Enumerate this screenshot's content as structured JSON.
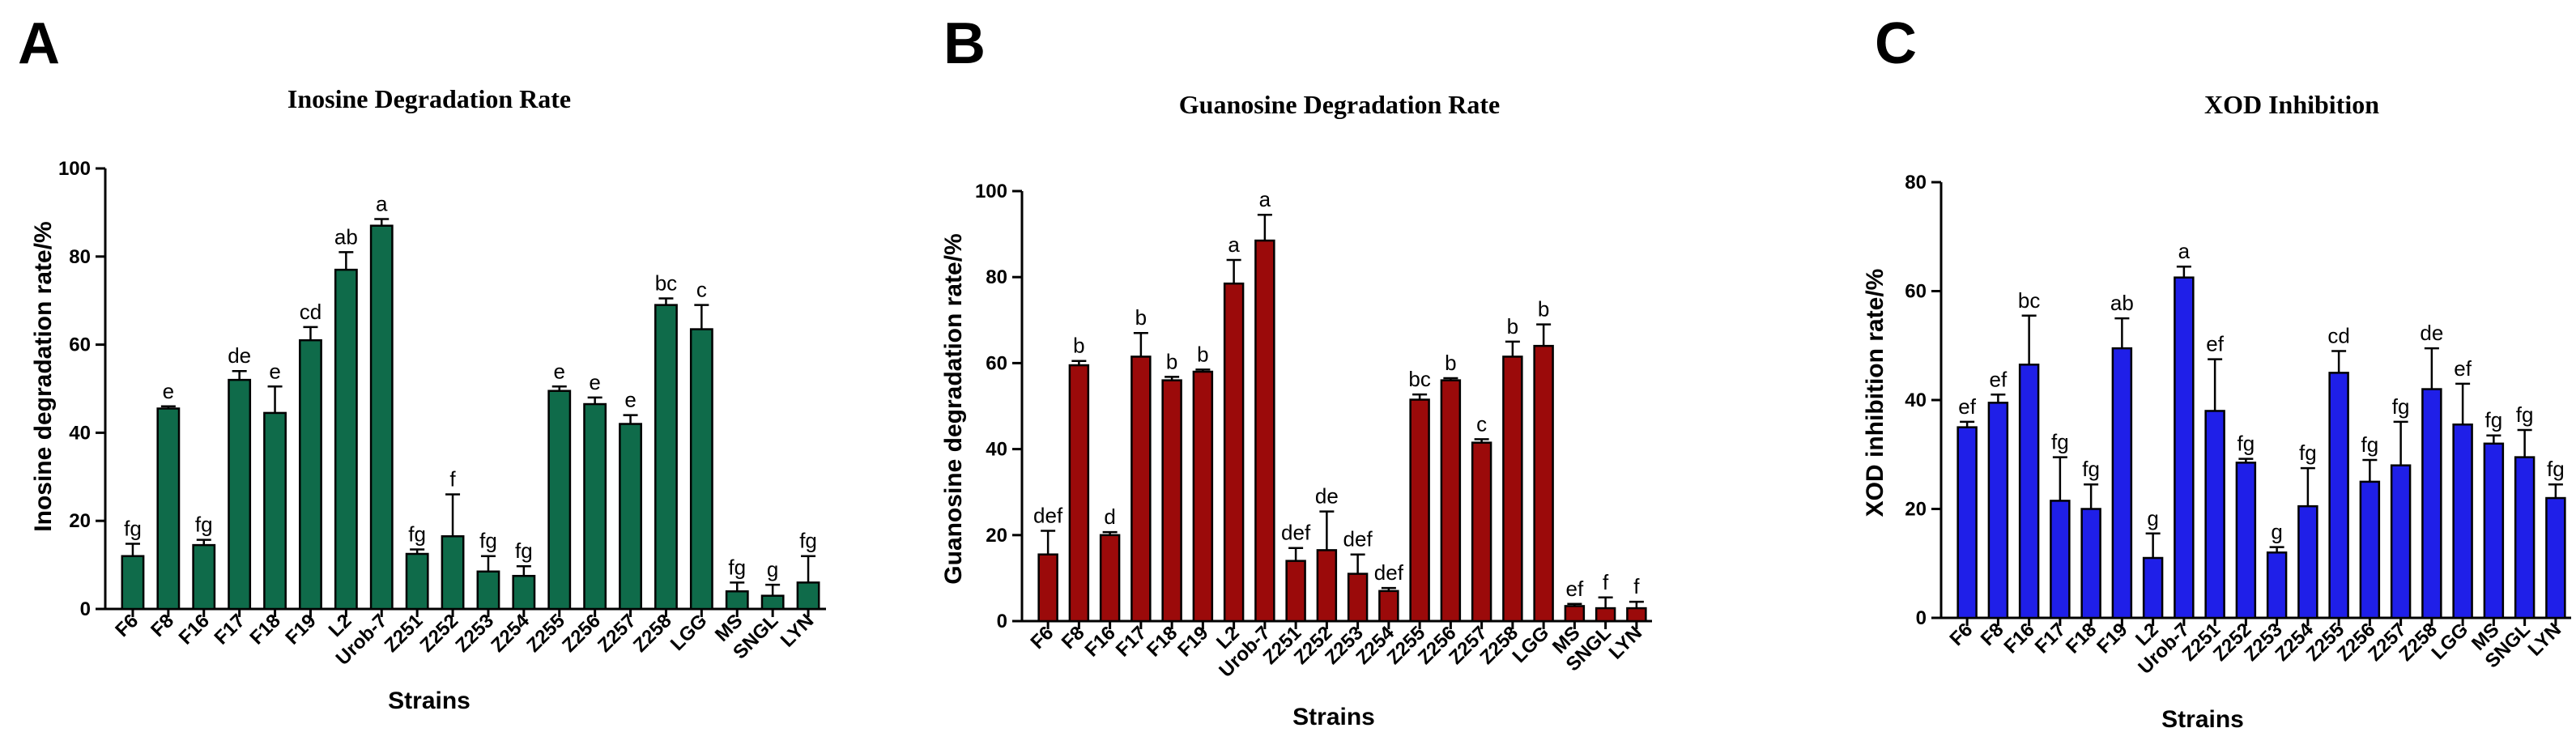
{
  "chart_data": [
    {
      "type": "bar",
      "panel": "A",
      "title": "Inosine Degradation Rate",
      "xlabel": "Strains",
      "ylabel": "Inosine degradation rate/%",
      "ylim": [
        0,
        100
      ],
      "yticks": [
        0,
        20,
        40,
        60,
        80,
        100
      ],
      "color": "#0f6b4a",
      "categories": [
        "F6",
        "F8",
        "F16",
        "F17",
        "F18",
        "F19",
        "L2",
        "Urob-7",
        "Z251",
        "Z252",
        "Z253",
        "Z254",
        "Z255",
        "Z256",
        "Z257",
        "Z258",
        "LGG",
        "MS",
        "SNGL",
        "LYN"
      ],
      "values": [
        12,
        45.5,
        14.5,
        52,
        44.5,
        61,
        77,
        87,
        12.5,
        16.5,
        8.5,
        7.5,
        49.5,
        46.5,
        42,
        69,
        63.5,
        4,
        3,
        6
      ],
      "errors": [
        2.8,
        0.5,
        1.2,
        2,
        6,
        3,
        4,
        1.5,
        1,
        9.5,
        3.5,
        2.2,
        1,
        1.5,
        2,
        1.5,
        5.5,
        2,
        2.5,
        6
      ],
      "significance": [
        "fg",
        "e",
        "fg",
        "de",
        "e",
        "cd",
        "ab",
        "a",
        "fg",
        "f",
        "fg",
        "fg",
        "e",
        "e",
        "e",
        "bc",
        "c",
        "fg",
        "g",
        "fg"
      ]
    },
    {
      "type": "bar",
      "panel": "B",
      "title": "Guanosine Degradation Rate",
      "xlabel": "Strains",
      "ylabel": "Guanosine degradation rate/%",
      "ylim": [
        0,
        100
      ],
      "yticks": [
        0,
        20,
        40,
        60,
        80,
        100
      ],
      "color": "#9b0a0a",
      "categories": [
        "F6",
        "F8",
        "F16",
        "F17",
        "F18",
        "F19",
        "L2",
        "Urob-7",
        "Z251",
        "Z252",
        "Z253",
        "Z254",
        "Z255",
        "Z256",
        "Z257",
        "Z258",
        "LGG",
        "MS",
        "SNGL",
        "LYN"
      ],
      "values": [
        15.5,
        59.5,
        20,
        61.5,
        56,
        58,
        78.5,
        88.5,
        14,
        16.5,
        11,
        7,
        51.5,
        56,
        41.5,
        61.5,
        64,
        3.5,
        3,
        3
      ],
      "errors": [
        5.5,
        1,
        0.7,
        5.5,
        0.8,
        0.5,
        5.5,
        6,
        3,
        9,
        4.5,
        0.7,
        1.2,
        0.5,
        0.8,
        3.5,
        5,
        0.5,
        2.5,
        1.5
      ],
      "significance": [
        "def",
        "b",
        "d",
        "b",
        "b",
        "b",
        "a",
        "a",
        "def",
        "de",
        "def",
        "def",
        "bc",
        "b",
        "c",
        "b",
        "b",
        "ef",
        "f",
        "f"
      ]
    },
    {
      "type": "bar",
      "panel": "C",
      "title": "XOD Inhibition",
      "xlabel": "Strains",
      "ylabel": "XOD inhibition rate/%",
      "ylim": [
        0,
        80
      ],
      "yticks": [
        0,
        20,
        40,
        60,
        80
      ],
      "color": "#1f1fe8",
      "categories": [
        "F6",
        "F8",
        "F16",
        "F17",
        "F18",
        "F19",
        "L2",
        "Urob-7",
        "Z251",
        "Z252",
        "Z253",
        "Z254",
        "Z255",
        "Z256",
        "Z257",
        "Z258",
        "LGG",
        "MS",
        "SNGL",
        "LYN"
      ],
      "values": [
        35,
        39.5,
        46.5,
        21.5,
        20,
        49.5,
        11,
        62.5,
        38,
        28.5,
        12,
        20.5,
        45,
        25,
        28,
        42,
        35.5,
        32,
        29.5,
        22
      ],
      "errors": [
        1,
        1.5,
        9,
        8,
        4.5,
        5.5,
        4.5,
        2,
        9.5,
        0.7,
        1,
        7,
        4,
        4,
        8,
        7.5,
        7.5,
        1.5,
        5,
        2.5
      ],
      "significance": [
        "ef",
        "ef",
        "bc",
        "fg",
        "fg",
        "ab",
        "g",
        "a",
        "ef",
        "fg",
        "g",
        "fg",
        "cd",
        "fg",
        "fg",
        "de",
        "ef",
        "fg",
        "fg",
        "fg"
      ]
    }
  ]
}
